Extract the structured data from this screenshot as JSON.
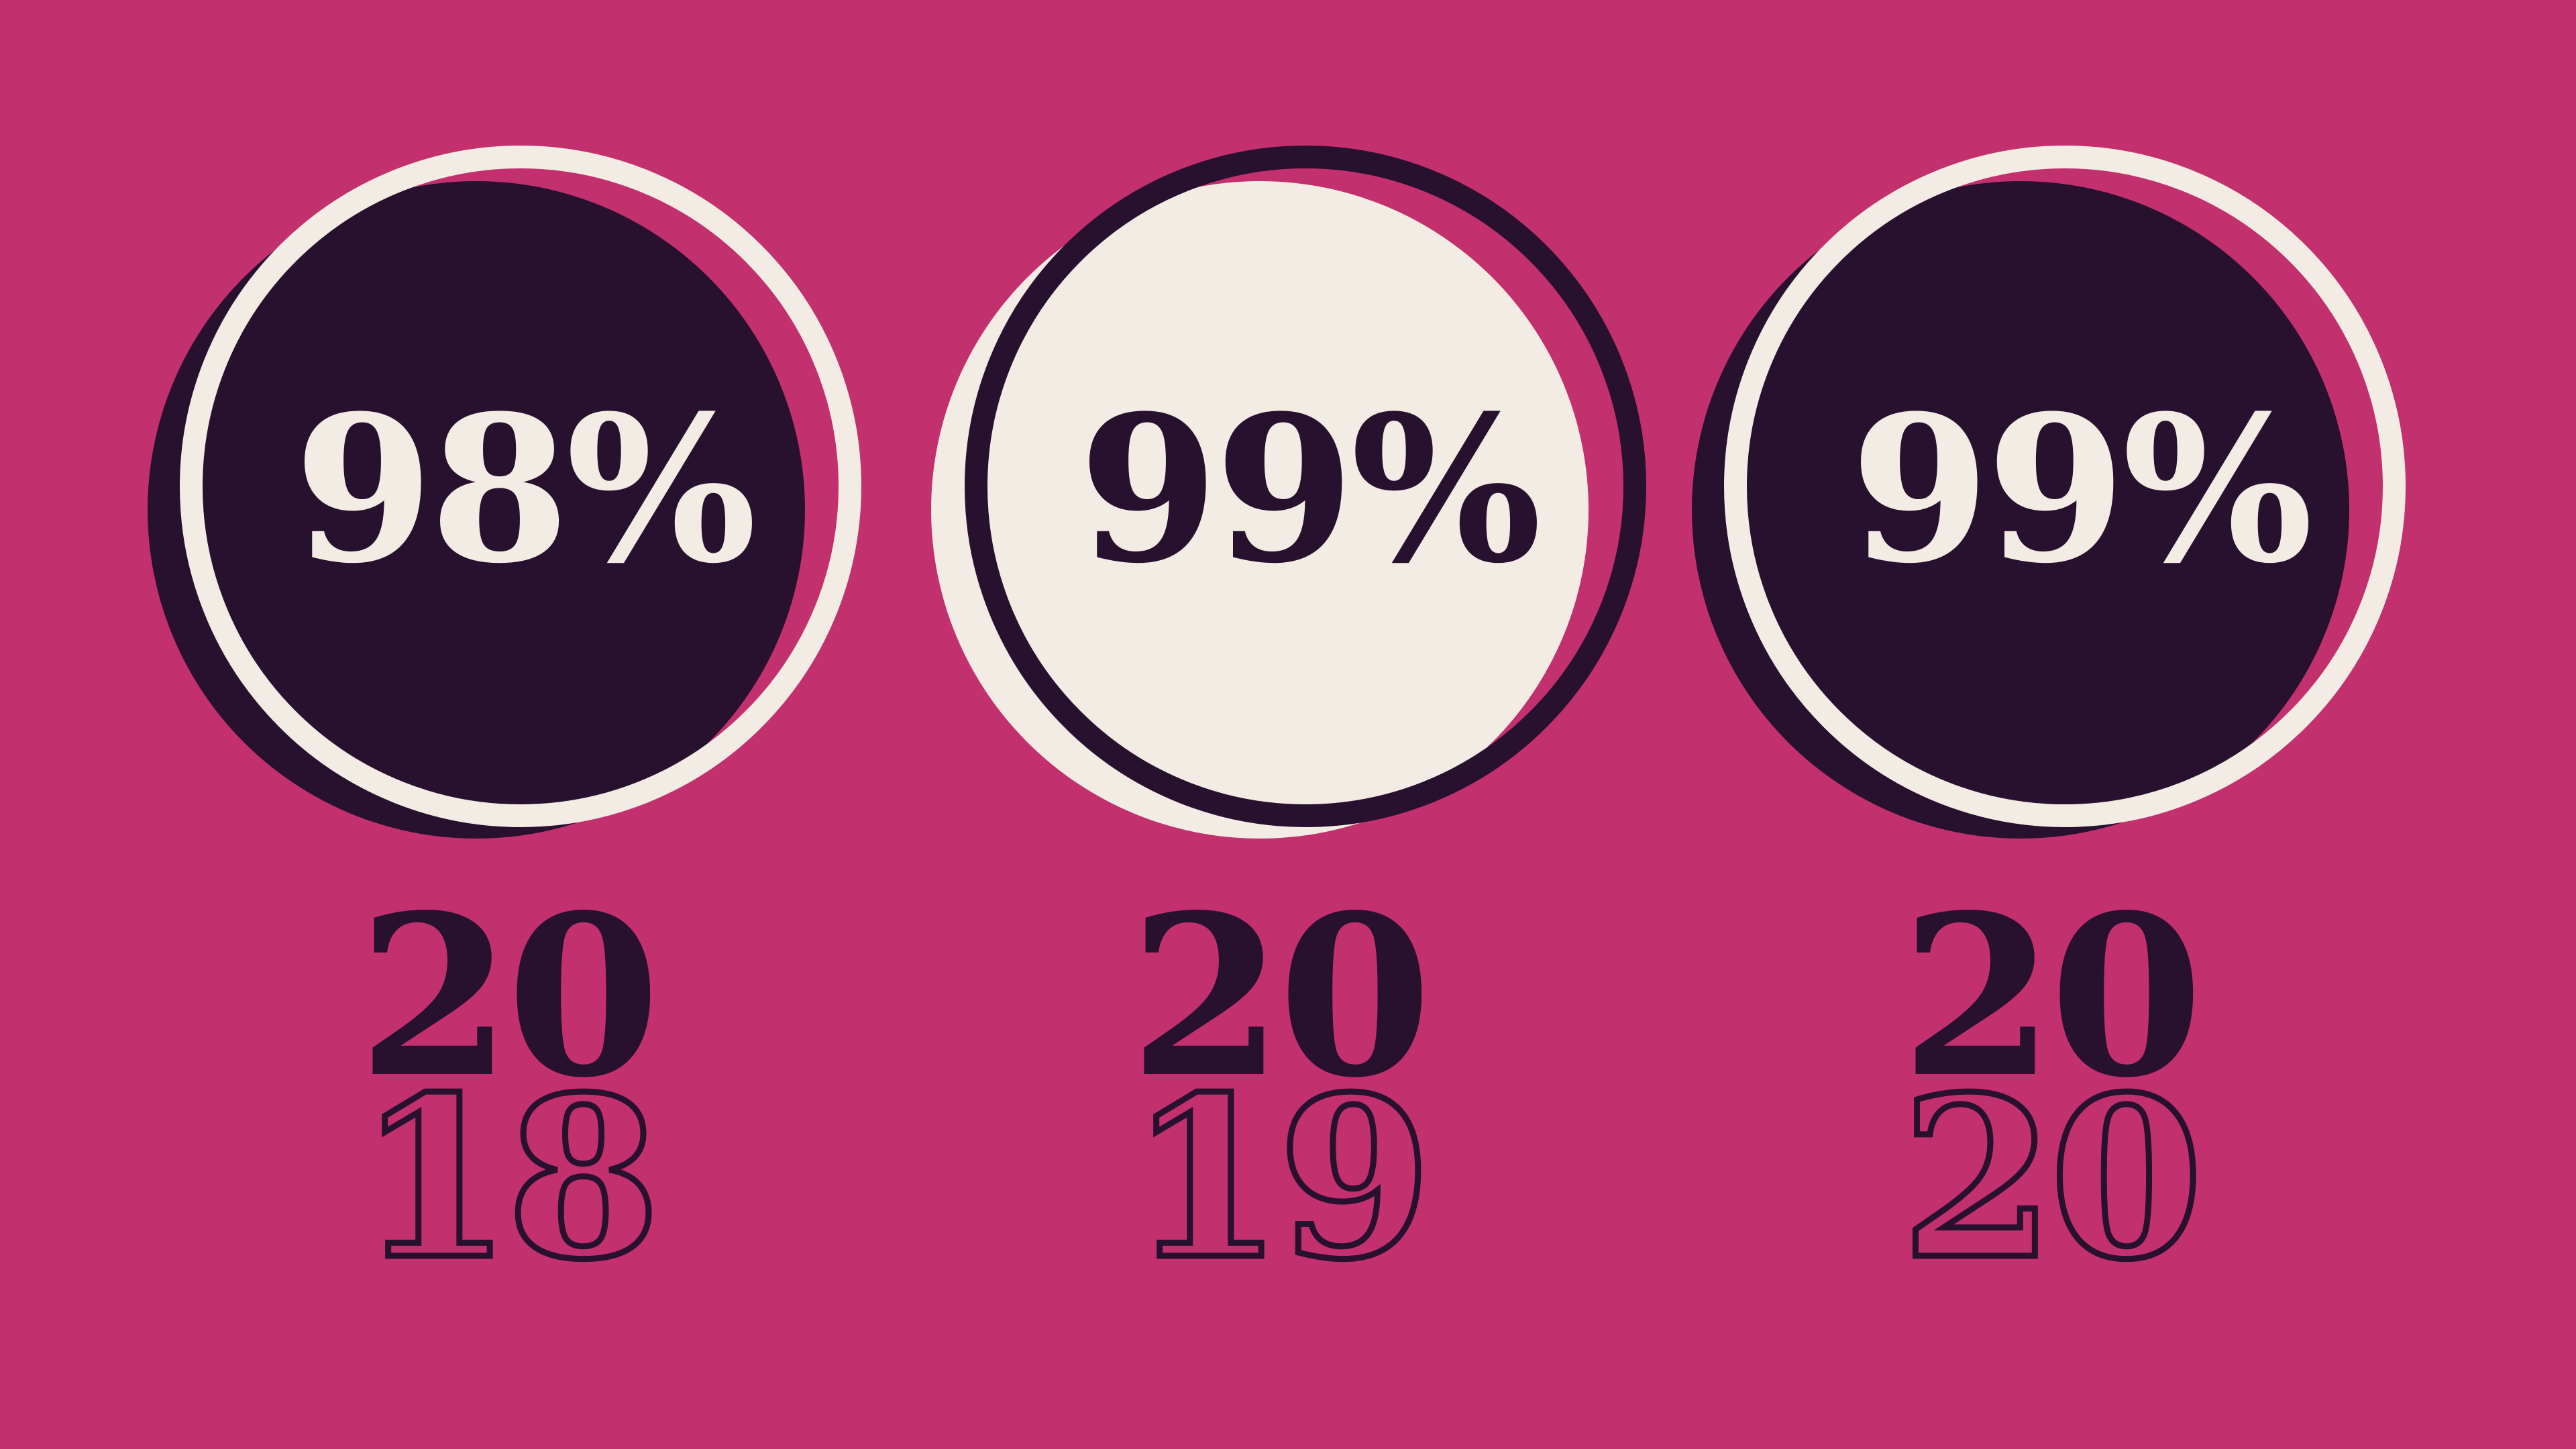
{
  "colors": {
    "background": "#C2306E",
    "dark": "#28102F",
    "cream": "#F3ECE4"
  },
  "stats": [
    {
      "value": "98%",
      "year_top": "20",
      "year_bottom": "18",
      "style": "dark-fill"
    },
    {
      "value": "99%",
      "year_top": "20",
      "year_bottom": "19",
      "style": "cream-fill"
    },
    {
      "value": "99%",
      "year_top": "20",
      "year_bottom": "20",
      "style": "dark-fill"
    }
  ]
}
